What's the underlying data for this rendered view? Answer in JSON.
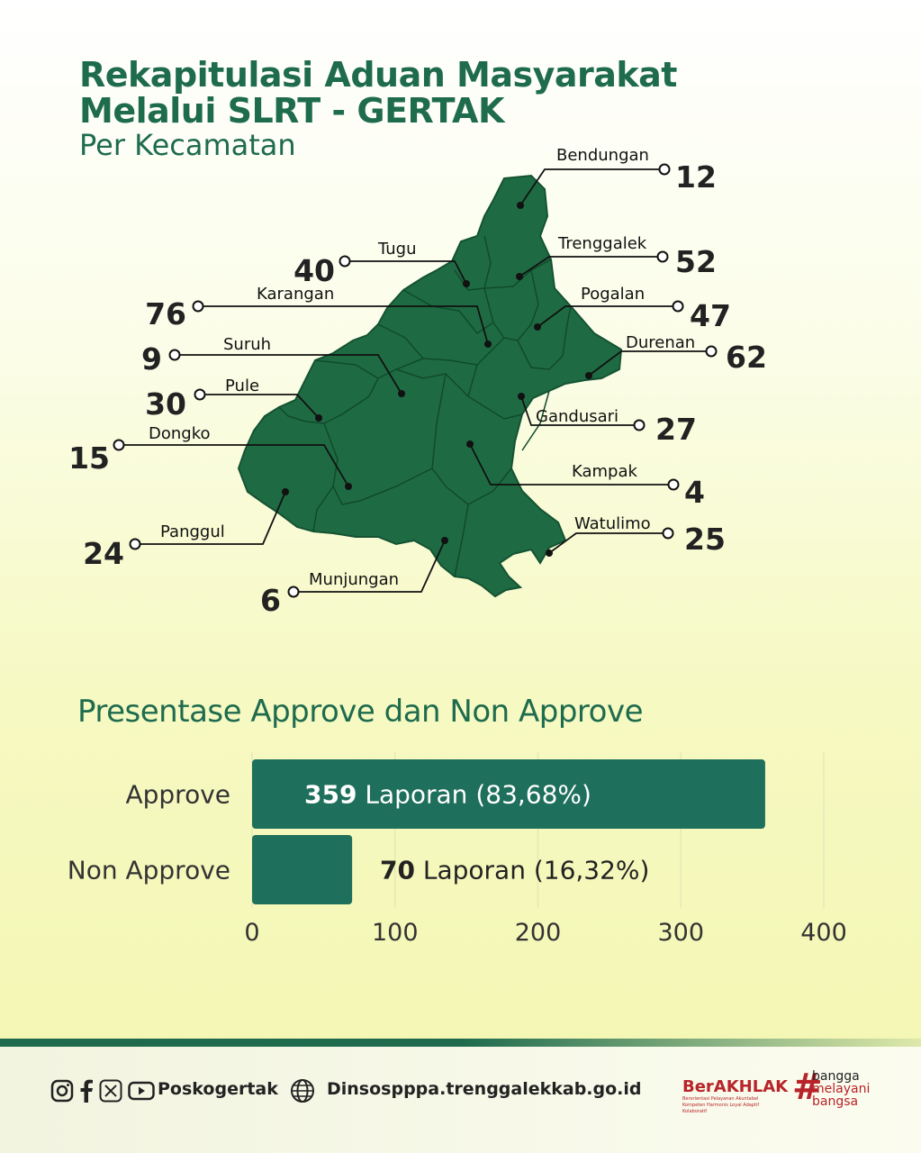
{
  "header": {
    "title_line1": "Rekapitulasi Aduan Masyarakat",
    "title_line2": "Melalui SLRT - GERTAK",
    "subtitle": "Per Kecamatan"
  },
  "map": {
    "fill_color": "#1e6b43",
    "border_color": "#145232",
    "districts": [
      {
        "name": "Bendungan",
        "value": 12
      },
      {
        "name": "Tugu",
        "value": 40
      },
      {
        "name": "Trenggalek",
        "value": 52
      },
      {
        "name": "Karangan",
        "value": 76
      },
      {
        "name": "Pogalan",
        "value": 47
      },
      {
        "name": "Suruh",
        "value": 9
      },
      {
        "name": "Durenan",
        "value": 62
      },
      {
        "name": "Pule",
        "value": 30
      },
      {
        "name": "Gandusari",
        "value": 27
      },
      {
        "name": "Dongko",
        "value": 15
      },
      {
        "name": "Kampak",
        "value": 4
      },
      {
        "name": "Panggul",
        "value": 24
      },
      {
        "name": "Watulimo",
        "value": 25
      },
      {
        "name": "Munjungan",
        "value": 6
      }
    ]
  },
  "section2": {
    "title": "Presentase Approve dan Non Approve"
  },
  "chart_data": {
    "type": "bar",
    "orientation": "horizontal",
    "categories": [
      "Approve",
      "Non Approve"
    ],
    "values": [
      359,
      70
    ],
    "data_labels": [
      {
        "value": "359",
        "text": "Laporan (83,68%)"
      },
      {
        "value": "70",
        "text": "Laporan (16,32%)"
      }
    ],
    "xlim": [
      0,
      400
    ],
    "xticks": [
      "0",
      "100",
      "200",
      "300",
      "400"
    ],
    "grid": true,
    "bar_color": "#1e6f5c"
  },
  "footer": {
    "social_icons": [
      "instagram-icon",
      "facebook-icon",
      "x-icon",
      "youtube-icon"
    ],
    "handle": "Poskogertak",
    "globe_icon": "globe-icon",
    "website": "Dinsospppa.trenggalekkab.go.id",
    "logo1_main": "BerAKHLAK",
    "logo1_sub": "Berorientasi Pelayanan Akuntabel Kompeten Harmonis Loyal Adaptif Kolaboratif",
    "logo2_line1": "bangga",
    "logo2_line2": "melayani",
    "logo2_line3": "bangsa",
    "accent": "#1e6b4e",
    "brand_red": "#b8242a"
  }
}
